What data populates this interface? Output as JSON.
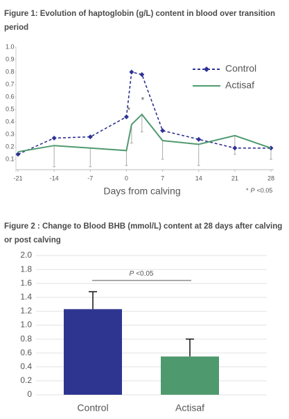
{
  "chart_data": [
    {
      "type": "line",
      "title": "Figure 1: Evolution of haptoglobin (g/L) content in blood over transition period",
      "x_label": "Days from calving",
      "x": [
        -21,
        -14,
        -7,
        0,
        1,
        3,
        7,
        14,
        21,
        28
      ],
      "series": [
        {
          "name": "Control",
          "color": "#2e3192",
          "style": "dashed",
          "marker": "diamond",
          "values": [
            0.14,
            0.27,
            0.28,
            0.44,
            0.8,
            0.78,
            0.33,
            0.26,
            0.19,
            0.19
          ]
        },
        {
          "name": "Actisaf",
          "color": "#4e9a6e",
          "style": "solid",
          "values": [
            0.16,
            0.21,
            0.19,
            0.17,
            0.38,
            0.46,
            0.25,
            0.22,
            0.29,
            0.19
          ],
          "errors": [
            null,
            0.17,
            0.15,
            0.12,
            0.15,
            0.14,
            0.15,
            0.17,
            0.15,
            0.09
          ]
        }
      ],
      "xlim": [
        -21,
        28
      ],
      "xticks": [
        -21,
        -14,
        -7,
        0,
        7,
        14,
        21,
        28
      ],
      "ylim": [
        0,
        1
      ],
      "yticks": [
        0.1,
        0.2,
        0.3,
        0.4,
        0.5,
        0.6,
        0.7,
        0.8,
        0.9,
        {
          "value": 1,
          "label": "1.0"
        }
      ],
      "grid": false,
      "legend": "upper right",
      "annotations": [
        "*",
        "*"
      ],
      "note": [
        "*",
        "P",
        "<0.05"
      ]
    },
    {
      "type": "bar",
      "title": "Figure 2 : Change to Blood BHB (mmol/L) content at 28 days after calving or post calving",
      "categories": [
        "Control",
        "Actisaf"
      ],
      "values": [
        1.23,
        0.55
      ],
      "errors": [
        0.25,
        0.25
      ],
      "colors": [
        "#2e3591",
        "#4e9a6e"
      ],
      "ylim": [
        0,
        2
      ],
      "yticks": [
        0,
        0.2,
        0.4,
        0.6,
        0.8,
        {
          "value": 1,
          "label": "1.0"
        },
        1.2,
        1.4,
        1.6,
        1.8,
        {
          "value": 2,
          "label": "2.0"
        }
      ],
      "grid": true,
      "annotation": [
        "P",
        "<0.05"
      ]
    }
  ]
}
